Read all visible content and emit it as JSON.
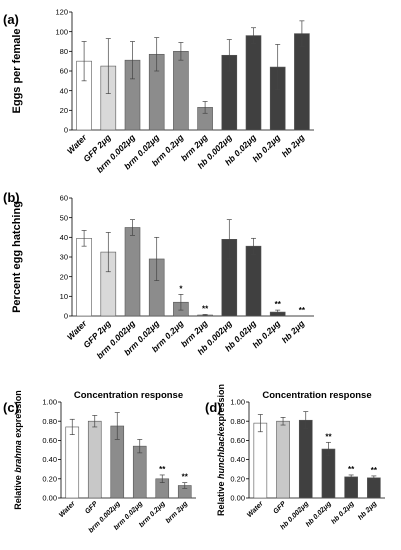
{
  "chart_data": [
    {
      "type": "bar",
      "panel_label": "(a)",
      "title": "",
      "ylabel": "Eggs per female",
      "ylim": [
        0,
        120
      ],
      "yticks": [
        0,
        20,
        40,
        60,
        80,
        100,
        120
      ],
      "grid": false,
      "categories": [
        "Water",
        "GFP 2μg",
        "brm 0.002μg",
        "brm 0.02μg",
        "brm 0.2μg",
        "brm 2μg",
        "hb 0.002μg",
        "hb 0.02μg",
        "hb 0.2μg",
        "hb 2μg"
      ],
      "values": [
        70,
        65,
        71,
        77,
        80,
        23,
        76,
        96,
        64,
        98
      ],
      "errors": [
        20,
        28,
        19,
        17,
        9,
        6,
        16,
        8,
        23,
        13
      ],
      "colors": [
        "#ffffff",
        "#d9d9d9",
        "#8c8c8c",
        "#8c8c8c",
        "#8c8c8c",
        "#8c8c8c",
        "#404040",
        "#404040",
        "#404040",
        "#404040"
      ],
      "annotations": [
        "",
        "",
        "",
        "",
        "",
        "",
        "",
        "",
        "",
        ""
      ]
    },
    {
      "type": "bar",
      "panel_label": "(b)",
      "title": "",
      "ylabel": "Percent egg hatching",
      "ylim": [
        0,
        60
      ],
      "yticks": [
        0,
        10,
        20,
        30,
        40,
        50,
        60
      ],
      "grid": false,
      "categories": [
        "Water",
        "GFP 2μg",
        "brm 0.002μg",
        "brm 0.02μg",
        "brm 0.2μg",
        "brm 2μg",
        "hb 0.002μg",
        "hb 0.02μg",
        "hb 0.2μg",
        "hb 2μg"
      ],
      "values": [
        39.5,
        32.5,
        45,
        29,
        7,
        0.5,
        39,
        35.5,
        2,
        0
      ],
      "errors": [
        4,
        10,
        4,
        11,
        4,
        0.3,
        10,
        4,
        1,
        0
      ],
      "colors": [
        "#ffffff",
        "#d9d9d9",
        "#8c8c8c",
        "#8c8c8c",
        "#8c8c8c",
        "#8c8c8c",
        "#404040",
        "#404040",
        "#404040",
        "#404040"
      ],
      "annotations": [
        "",
        "",
        "",
        "",
        "*",
        "**",
        "",
        "",
        "**",
        "**"
      ]
    },
    {
      "type": "bar",
      "panel_label": "(c)",
      "title": "Concentration response",
      "ylabel_parts": [
        "Relative ",
        "brahma",
        " expression"
      ],
      "ylim": [
        0,
        1
      ],
      "yticks": [
        "0.00",
        "0.20",
        "0.40",
        "0.60",
        "0.80",
        "1.00"
      ],
      "grid": false,
      "categories": [
        "Water",
        "GFP",
        "brm 0.002μg",
        "brm 0.02μg",
        "brm 0.2μg",
        "brm 2μg"
      ],
      "values": [
        0.74,
        0.8,
        0.75,
        0.54,
        0.2,
        0.13
      ],
      "errors": [
        0.08,
        0.06,
        0.14,
        0.07,
        0.04,
        0.03
      ],
      "colors": [
        "#ffffff",
        "#c8c8c8",
        "#8c8c8c",
        "#8c8c8c",
        "#8c8c8c",
        "#8c8c8c"
      ],
      "annotations": [
        "",
        "",
        "",
        "",
        "**",
        "**"
      ]
    },
    {
      "type": "bar",
      "panel_label": "(d)",
      "title": "Concentration response",
      "ylabel_parts": [
        "Relative ",
        "hunchback",
        "expression"
      ],
      "ylim": [
        0,
        1
      ],
      "yticks": [
        "0.00",
        "0.20",
        "0.40",
        "0.60",
        "0.80",
        "1.00"
      ],
      "grid": false,
      "categories": [
        "Water",
        "GFP",
        "hb 0.002μg",
        "hb 0.02μg",
        "hb 0.2μg",
        "hb 2μg"
      ],
      "values": [
        0.78,
        0.8,
        0.81,
        0.51,
        0.22,
        0.21
      ],
      "errors": [
        0.09,
        0.04,
        0.09,
        0.07,
        0.02,
        0.02
      ],
      "colors": [
        "#ffffff",
        "#c8c8c8",
        "#404040",
        "#404040",
        "#404040",
        "#404040"
      ],
      "annotations": [
        "",
        "",
        "",
        "**",
        "**",
        "**"
      ]
    }
  ]
}
